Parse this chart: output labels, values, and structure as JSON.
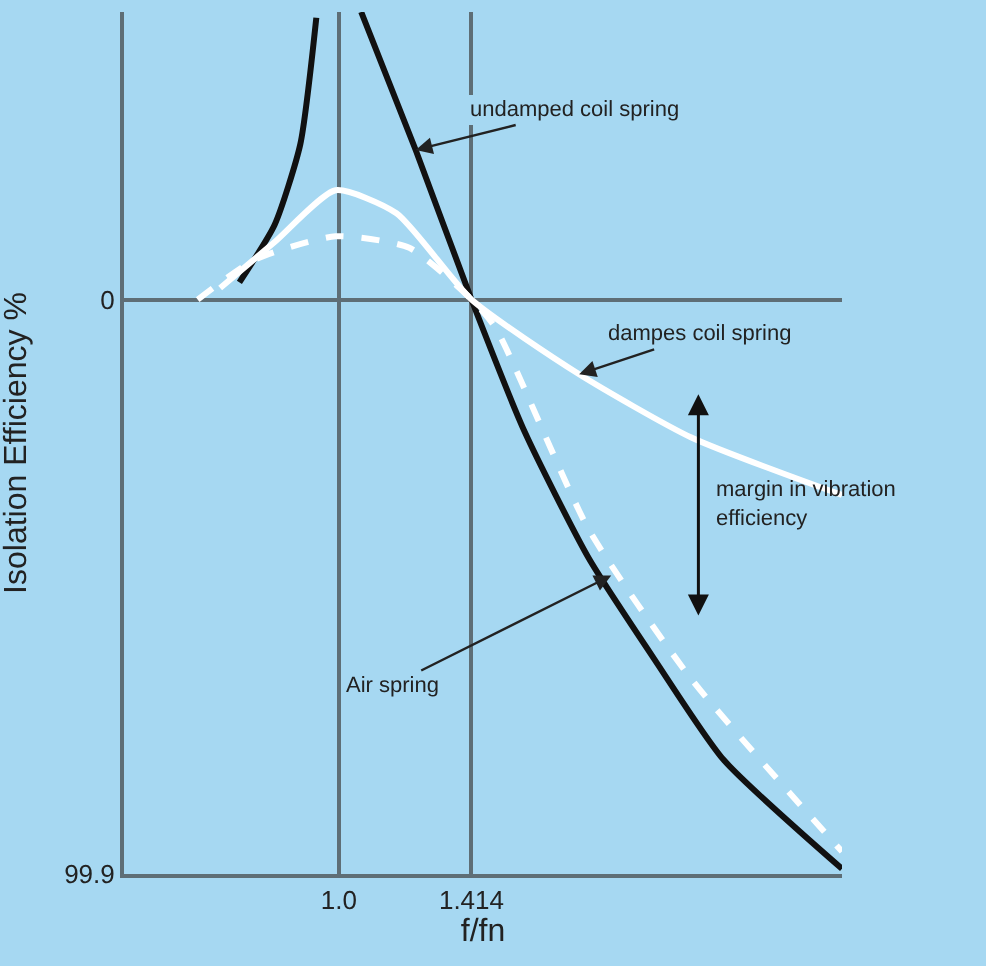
{
  "chart_data": {
    "type": "line",
    "xlabel": "f/fn",
    "ylabel": "Isolation Efficiency %",
    "xlim": [
      0.33,
      2.57
    ],
    "xticks": [
      {
        "value": 1.0,
        "label": "1.0"
      },
      1.414
    ],
    "ylim": [
      99.9,
      -50
    ],
    "yticks": [
      0,
      99.9
    ],
    "grid": true,
    "legend": false,
    "series": [
      {
        "color": "#111111",
        "line_style": "solid",
        "x": [
          0.69,
          0.8,
          0.88,
          0.93,
          null,
          1.07,
          1.24,
          1.414,
          1.58,
          1.78,
          1.99,
          2.2,
          2.57
        ],
        "values": [
          -3,
          -13,
          -27,
          -49,
          null,
          -50,
          -26,
          0,
          23,
          45,
          63,
          80,
          99
        ]
      },
      {
        "color": "#ffffff",
        "line_style": "solid",
        "x": [
          0.63,
          0.8,
          0.99,
          1.18,
          1.414,
          1.75,
          2.1,
          2.57
        ],
        "values": [
          -2,
          -10,
          -19,
          -15,
          0,
          13,
          24,
          34
        ]
      },
      {
        "color": "#ffffff",
        "line_style": "dashed",
        "x": [
          0.56,
          0.74,
          0.99,
          1.22,
          1.414,
          1.49,
          1.78,
          2.1,
          2.57
        ],
        "values": [
          0,
          -7,
          -11,
          -9,
          0,
          5,
          40,
          66,
          96
        ]
      }
    ],
    "annotations": [
      {
        "text": "undamped coil spring",
        "x": 1.24,
        "y": -26
      },
      {
        "text": "dampes coil spring",
        "x": 1.75,
        "y": 13
      },
      "margin in vibration efficiency",
      {
        "text": "Air spring",
        "x": 1.85,
        "y": 48
      }
    ]
  }
}
